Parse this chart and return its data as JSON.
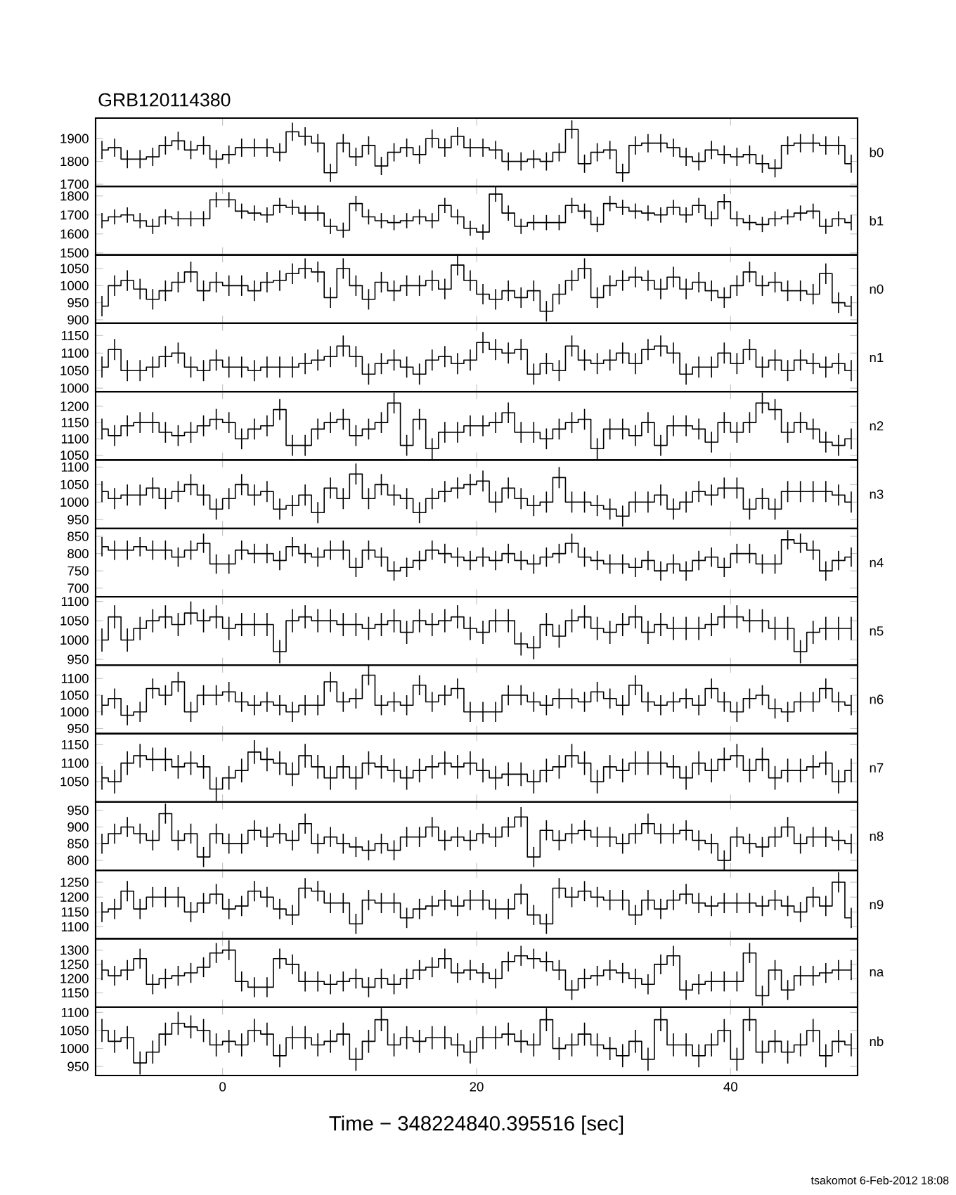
{
  "chart_data": [
    {
      "type": "step",
      "title": "GRB120114380",
      "annotations": [
        "b0"
      ],
      "color": "#000000",
      "xlim": [
        -10,
        50
      ],
      "xticks": [
        0,
        20,
        40
      ],
      "tick_labels": "y",
      "ylim": [
        1690,
        1990
      ],
      "yticks": [
        1700,
        1800,
        1900
      ],
      "x": [
        -9.5,
        -8.5,
        -7.5,
        -6.5,
        -5.5,
        -4.5,
        -3.5,
        -2.5,
        -1.5,
        -0.5,
        0.5,
        1.5,
        2.5,
        3.5,
        4.5,
        5.5,
        6.5,
        7.5,
        8.5,
        9.5,
        10.5,
        11.5,
        12.5,
        13.5,
        14.5,
        15.5,
        16.5,
        17.5,
        18.5,
        19.5,
        20.5,
        21.5,
        22.5,
        23.5,
        24.5,
        25.5,
        26.5,
        27.5,
        28.5,
        29.5,
        30.5,
        31.5,
        32.5,
        33.5,
        34.5,
        35.5,
        36.5,
        37.5,
        38.5,
        39.5,
        40.5,
        41.5,
        42.5,
        43.5,
        44.5,
        45.5,
        46.5,
        47.5,
        48.5,
        49.5
      ],
      "values": [
        1850,
        1860,
        1810,
        1810,
        1820,
        1870,
        1890,
        1850,
        1870,
        1810,
        1830,
        1860,
        1860,
        1860,
        1840,
        1930,
        1910,
        1880,
        1750,
        1880,
        1820,
        1870,
        1780,
        1840,
        1860,
        1830,
        1900,
        1860,
        1910,
        1860,
        1860,
        1850,
        1800,
        1800,
        1810,
        1800,
        1840,
        1940,
        1790,
        1840,
        1850,
        1750,
        1870,
        1880,
        1880,
        1860,
        1820,
        1800,
        1850,
        1830,
        1820,
        1830,
        1790,
        1770,
        1870,
        1880,
        1880,
        1870,
        1870,
        1790
      ],
      "errors": [
        40,
        40,
        40,
        40,
        40,
        40,
        40,
        40,
        40,
        40,
        40,
        40,
        40,
        40,
        40,
        40,
        40,
        40,
        40,
        40,
        40,
        40,
        40,
        40,
        40,
        40,
        40,
        40,
        40,
        40,
        40,
        40,
        40,
        40,
        40,
        40,
        40,
        40,
        40,
        40,
        40,
        40,
        40,
        40,
        40,
        40,
        40,
        40,
        40,
        40,
        40,
        40,
        40,
        40,
        40,
        40,
        40,
        40,
        40,
        40
      ]
    },
    {
      "type": "step",
      "annotations": [
        "b1"
      ],
      "color": "#000000",
      "xlim": [
        -10,
        50
      ],
      "xticks": [
        0,
        20,
        40
      ],
      "tick_labels": "y",
      "ylim": [
        1490,
        1850
      ],
      "yticks": [
        1500,
        1600,
        1700,
        1800
      ],
      "x": [
        -9.5,
        -8.5,
        -7.5,
        -6.5,
        -5.5,
        -4.5,
        -3.5,
        -2.5,
        -1.5,
        -0.5,
        0.5,
        1.5,
        2.5,
        3.5,
        4.5,
        5.5,
        6.5,
        7.5,
        8.5,
        9.5,
        10.5,
        11.5,
        12.5,
        13.5,
        14.5,
        15.5,
        16.5,
        17.5,
        18.5,
        19.5,
        20.5,
        21.5,
        22.5,
        23.5,
        24.5,
        25.5,
        26.5,
        27.5,
        28.5,
        29.5,
        30.5,
        31.5,
        32.5,
        33.5,
        34.5,
        35.5,
        36.5,
        37.5,
        38.5,
        39.5,
        40.5,
        41.5,
        42.5,
        43.5,
        44.5,
        45.5,
        46.5,
        47.5,
        48.5,
        49.5
      ],
      "values": [
        1670,
        1690,
        1700,
        1670,
        1640,
        1690,
        1680,
        1680,
        1680,
        1780,
        1780,
        1720,
        1710,
        1700,
        1750,
        1740,
        1710,
        1710,
        1640,
        1620,
        1760,
        1690,
        1670,
        1660,
        1670,
        1690,
        1670,
        1750,
        1690,
        1630,
        1610,
        1810,
        1710,
        1640,
        1660,
        1660,
        1660,
        1750,
        1720,
        1650,
        1760,
        1740,
        1720,
        1710,
        1700,
        1740,
        1700,
        1750,
        1680,
        1770,
        1680,
        1660,
        1650,
        1680,
        1690,
        1710,
        1720,
        1640,
        1680,
        1660
      ],
      "errors": [
        40,
        40,
        40,
        40,
        40,
        40,
        40,
        40,
        40,
        40,
        40,
        40,
        40,
        40,
        40,
        40,
        40,
        40,
        40,
        40,
        40,
        40,
        40,
        40,
        40,
        40,
        40,
        40,
        40,
        40,
        40,
        40,
        40,
        40,
        40,
        40,
        40,
        40,
        40,
        40,
        40,
        40,
        40,
        40,
        40,
        40,
        40,
        40,
        40,
        40,
        40,
        40,
        40,
        40,
        40,
        40,
        40,
        40,
        40,
        40
      ]
    },
    {
      "type": "step",
      "annotations": [
        "n0"
      ],
      "color": "#000000",
      "xlim": [
        -10,
        50
      ],
      "xticks": [
        0,
        20,
        40
      ],
      "tick_labels": "y",
      "ylim": [
        890,
        1090
      ],
      "yticks": [
        900,
        950,
        1000,
        1050
      ],
      "x": [
        -9.5,
        -8.5,
        -7.5,
        -6.5,
        -5.5,
        -4.5,
        -3.5,
        -2.5,
        -1.5,
        -0.5,
        0.5,
        1.5,
        2.5,
        3.5,
        4.5,
        5.5,
        6.5,
        7.5,
        8.5,
        9.5,
        10.5,
        11.5,
        12.5,
        13.5,
        14.5,
        15.5,
        16.5,
        17.5,
        18.5,
        19.5,
        20.5,
        21.5,
        22.5,
        23.5,
        24.5,
        25.5,
        26.5,
        27.5,
        28.5,
        29.5,
        30.5,
        31.5,
        32.5,
        33.5,
        34.5,
        35.5,
        36.5,
        37.5,
        38.5,
        39.5,
        40.5,
        41.5,
        42.5,
        43.5,
        44.5,
        45.5,
        46.5,
        47.5,
        48.5,
        49.5
      ],
      "values": [
        940,
        1000,
        1015,
        990,
        960,
        985,
        1010,
        1040,
        985,
        1010,
        1000,
        1000,
        985,
        1010,
        1015,
        1035,
        1050,
        1040,
        965,
        1050,
        1000,
        960,
        1010,
        985,
        1000,
        1000,
        1015,
        990,
        1060,
        1015,
        975,
        960,
        985,
        965,
        985,
        925,
        975,
        1015,
        1050,
        965,
        1000,
        1015,
        1025,
        1015,
        990,
        1025,
        990,
        1010,
        985,
        965,
        1000,
        1040,
        1000,
        1010,
        985,
        985,
        975,
        1035,
        950,
        940
      ],
      "errors": [
        30,
        30,
        30,
        30,
        30,
        30,
        30,
        30,
        30,
        30,
        30,
        30,
        30,
        30,
        30,
        30,
        30,
        30,
        30,
        30,
        30,
        30,
        30,
        30,
        30,
        30,
        30,
        30,
        30,
        30,
        30,
        30,
        30,
        30,
        30,
        30,
        30,
        30,
        30,
        30,
        30,
        30,
        30,
        30,
        30,
        30,
        30,
        30,
        30,
        30,
        30,
        30,
        30,
        30,
        30,
        30,
        30,
        30,
        30,
        30
      ]
    },
    {
      "type": "step",
      "annotations": [
        "n1"
      ],
      "color": "#000000",
      "xlim": [
        -10,
        50
      ],
      "xticks": [
        0,
        20,
        40
      ],
      "tick_labels": "y",
      "ylim": [
        990,
        1185
      ],
      "yticks": [
        1000,
        1050,
        1100,
        1150
      ],
      "x": [
        -9.5,
        -8.5,
        -7.5,
        -6.5,
        -5.5,
        -4.5,
        -3.5,
        -2.5,
        -1.5,
        -0.5,
        0.5,
        1.5,
        2.5,
        3.5,
        4.5,
        5.5,
        6.5,
        7.5,
        8.5,
        9.5,
        10.5,
        11.5,
        12.5,
        13.5,
        14.5,
        15.5,
        16.5,
        17.5,
        18.5,
        19.5,
        20.5,
        21.5,
        22.5,
        23.5,
        24.5,
        25.5,
        26.5,
        27.5,
        28.5,
        29.5,
        30.5,
        31.5,
        32.5,
        33.5,
        34.5,
        35.5,
        36.5,
        37.5,
        38.5,
        39.5,
        40.5,
        41.5,
        42.5,
        43.5,
        44.5,
        45.5,
        46.5,
        47.5,
        48.5,
        49.5
      ],
      "values": [
        1060,
        1110,
        1050,
        1050,
        1060,
        1090,
        1100,
        1060,
        1050,
        1080,
        1060,
        1060,
        1050,
        1060,
        1060,
        1060,
        1070,
        1080,
        1090,
        1120,
        1090,
        1040,
        1070,
        1080,
        1060,
        1040,
        1080,
        1090,
        1070,
        1080,
        1130,
        1110,
        1100,
        1110,
        1040,
        1070,
        1050,
        1120,
        1080,
        1070,
        1080,
        1100,
        1070,
        1110,
        1120,
        1100,
        1040,
        1060,
        1060,
        1100,
        1070,
        1110,
        1060,
        1080,
        1050,
        1080,
        1070,
        1060,
        1070,
        1050
      ],
      "errors": [
        30,
        30,
        30,
        30,
        30,
        30,
        30,
        30,
        30,
        30,
        30,
        30,
        30,
        30,
        30,
        30,
        30,
        30,
        30,
        30,
        30,
        30,
        30,
        30,
        30,
        30,
        30,
        30,
        30,
        30,
        30,
        30,
        30,
        30,
        30,
        30,
        30,
        30,
        30,
        30,
        30,
        30,
        30,
        30,
        30,
        30,
        30,
        30,
        30,
        30,
        30,
        30,
        30,
        30,
        30,
        30,
        30,
        30,
        30,
        30
      ]
    },
    {
      "type": "step",
      "annotations": [
        "n2"
      ],
      "color": "#000000",
      "xlim": [
        -10,
        50
      ],
      "xticks": [
        0,
        20,
        40
      ],
      "tick_labels": "y",
      "ylim": [
        1035,
        1245
      ],
      "yticks": [
        1050,
        1100,
        1150,
        1200
      ],
      "x": [
        -9.5,
        -8.5,
        -7.5,
        -6.5,
        -5.5,
        -4.5,
        -3.5,
        -2.5,
        -1.5,
        -0.5,
        0.5,
        1.5,
        2.5,
        3.5,
        4.5,
        5.5,
        6.5,
        7.5,
        8.5,
        9.5,
        10.5,
        11.5,
        12.5,
        13.5,
        14.5,
        15.5,
        16.5,
        17.5,
        18.5,
        19.5,
        20.5,
        21.5,
        22.5,
        23.5,
        24.5,
        25.5,
        26.5,
        27.5,
        28.5,
        29.5,
        30.5,
        31.5,
        32.5,
        33.5,
        34.5,
        35.5,
        36.5,
        37.5,
        38.5,
        39.5,
        40.5,
        41.5,
        42.5,
        43.5,
        44.5,
        45.5,
        46.5,
        47.5,
        48.5,
        49.5
      ],
      "values": [
        1130,
        1110,
        1140,
        1150,
        1150,
        1120,
        1110,
        1120,
        1140,
        1160,
        1150,
        1100,
        1130,
        1140,
        1190,
        1080,
        1080,
        1130,
        1150,
        1160,
        1110,
        1130,
        1150,
        1210,
        1080,
        1160,
        1070,
        1120,
        1120,
        1140,
        1140,
        1150,
        1180,
        1120,
        1120,
        1100,
        1130,
        1150,
        1160,
        1070,
        1130,
        1130,
        1110,
        1150,
        1080,
        1140,
        1140,
        1130,
        1090,
        1150,
        1120,
        1150,
        1210,
        1190,
        1120,
        1150,
        1130,
        1090,
        1080,
        1100
      ],
      "errors": [
        32,
        32,
        32,
        32,
        32,
        32,
        32,
        32,
        32,
        32,
        32,
        32,
        32,
        32,
        32,
        32,
        32,
        32,
        32,
        32,
        32,
        32,
        32,
        32,
        32,
        32,
        32,
        32,
        32,
        32,
        32,
        32,
        32,
        32,
        32,
        32,
        32,
        32,
        32,
        32,
        32,
        32,
        32,
        32,
        32,
        32,
        32,
        32,
        32,
        32,
        32,
        32,
        32,
        32,
        32,
        32,
        32,
        32,
        32,
        32
      ]
    },
    {
      "type": "step",
      "annotations": [
        "n3"
      ],
      "color": "#000000",
      "xlim": [
        -10,
        50
      ],
      "xticks": [
        0,
        20,
        40
      ],
      "tick_labels": "y",
      "ylim": [
        925,
        1120
      ],
      "yticks": [
        950,
        1000,
        1050,
        1100
      ],
      "x": [
        -9.5,
        -8.5,
        -7.5,
        -6.5,
        -5.5,
        -4.5,
        -3.5,
        -2.5,
        -1.5,
        -0.5,
        0.5,
        1.5,
        2.5,
        3.5,
        4.5,
        5.5,
        6.5,
        7.5,
        8.5,
        9.5,
        10.5,
        11.5,
        12.5,
        13.5,
        14.5,
        15.5,
        16.5,
        17.5,
        18.5,
        19.5,
        20.5,
        21.5,
        22.5,
        23.5,
        24.5,
        25.5,
        26.5,
        27.5,
        28.5,
        29.5,
        30.5,
        31.5,
        32.5,
        33.5,
        34.5,
        35.5,
        36.5,
        37.5,
        38.5,
        39.5,
        40.5,
        41.5,
        42.5,
        43.5,
        44.5,
        45.5,
        46.5,
        47.5,
        48.5,
        49.5
      ],
      "values": [
        1030,
        1010,
        1020,
        1020,
        1040,
        1010,
        1030,
        1050,
        1020,
        980,
        1010,
        1050,
        1020,
        1030,
        980,
        990,
        1020,
        970,
        1040,
        1010,
        1080,
        1010,
        1050,
        1020,
        1010,
        970,
        1010,
        1030,
        1040,
        1050,
        1060,
        1000,
        1040,
        1010,
        990,
        1000,
        1070,
        1000,
        1000,
        990,
        980,
        960,
        1000,
        1000,
        1020,
        980,
        1000,
        1030,
        1020,
        1040,
        1040,
        980,
        1010,
        980,
        1030,
        1030,
        1030,
        1030,
        1020,
        1000
      ],
      "errors": [
        30,
        30,
        30,
        30,
        30,
        30,
        30,
        30,
        30,
        30,
        30,
        30,
        30,
        30,
        30,
        30,
        30,
        30,
        30,
        30,
        30,
        30,
        30,
        30,
        30,
        30,
        30,
        30,
        30,
        30,
        30,
        30,
        30,
        30,
        30,
        30,
        30,
        30,
        30,
        30,
        30,
        30,
        30,
        30,
        30,
        30,
        30,
        30,
        30,
        30,
        30,
        30,
        30,
        30,
        30,
        30,
        30,
        30,
        30,
        30
      ]
    },
    {
      "type": "step",
      "annotations": [
        "n4"
      ],
      "color": "#000000",
      "xlim": [
        -10,
        50
      ],
      "xticks": [
        0,
        20,
        40
      ],
      "tick_labels": "y",
      "ylim": [
        675,
        873
      ],
      "yticks": [
        700,
        750,
        800,
        850
      ],
      "x": [
        -9.5,
        -8.5,
        -7.5,
        -6.5,
        -5.5,
        -4.5,
        -3.5,
        -2.5,
        -1.5,
        -0.5,
        0.5,
        1.5,
        2.5,
        3.5,
        4.5,
        5.5,
        6.5,
        7.5,
        8.5,
        9.5,
        10.5,
        11.5,
        12.5,
        13.5,
        14.5,
        15.5,
        16.5,
        17.5,
        18.5,
        19.5,
        20.5,
        21.5,
        22.5,
        23.5,
        24.5,
        25.5,
        26.5,
        27.5,
        28.5,
        29.5,
        30.5,
        31.5,
        32.5,
        33.5,
        34.5,
        35.5,
        36.5,
        37.5,
        38.5,
        39.5,
        40.5,
        41.5,
        42.5,
        43.5,
        44.5,
        45.5,
        46.5,
        47.5,
        48.5,
        49.5
      ],
      "values": [
        820,
        810,
        810,
        820,
        810,
        810,
        790,
        810,
        830,
        770,
        770,
        810,
        800,
        800,
        780,
        820,
        800,
        790,
        810,
        810,
        760,
        810,
        790,
        750,
        760,
        780,
        810,
        800,
        790,
        780,
        790,
        780,
        800,
        780,
        770,
        790,
        800,
        830,
        790,
        780,
        770,
        770,
        760,
        780,
        750,
        770,
        750,
        780,
        790,
        760,
        800,
        800,
        770,
        770,
        840,
        830,
        810,
        750,
        780,
        790
      ],
      "errors": [
        28,
        28,
        28,
        28,
        28,
        28,
        28,
        28,
        28,
        28,
        28,
        28,
        28,
        28,
        28,
        28,
        28,
        28,
        28,
        28,
        28,
        28,
        28,
        28,
        28,
        28,
        28,
        28,
        28,
        28,
        28,
        28,
        28,
        28,
        28,
        28,
        28,
        28,
        28,
        28,
        28,
        28,
        28,
        28,
        28,
        28,
        28,
        28,
        28,
        28,
        28,
        28,
        28,
        28,
        28,
        28,
        28,
        28,
        28,
        28
      ]
    },
    {
      "type": "step",
      "annotations": [
        "n5"
      ],
      "color": "#000000",
      "xlim": [
        -10,
        50
      ],
      "xticks": [
        0,
        20,
        40
      ],
      "tick_labels": "y",
      "ylim": [
        935,
        1112
      ],
      "yticks": [
        950,
        1000,
        1050,
        1100
      ],
      "x": [
        -9.5,
        -8.5,
        -7.5,
        -6.5,
        -5.5,
        -4.5,
        -3.5,
        -2.5,
        -1.5,
        -0.5,
        0.5,
        1.5,
        2.5,
        3.5,
        4.5,
        5.5,
        6.5,
        7.5,
        8.5,
        9.5,
        10.5,
        11.5,
        12.5,
        13.5,
        14.5,
        15.5,
        16.5,
        17.5,
        18.5,
        19.5,
        20.5,
        21.5,
        22.5,
        23.5,
        24.5,
        25.5,
        26.5,
        27.5,
        28.5,
        29.5,
        30.5,
        31.5,
        32.5,
        33.5,
        34.5,
        35.5,
        36.5,
        37.5,
        38.5,
        39.5,
        40.5,
        41.5,
        42.5,
        43.5,
        44.5,
        45.5,
        46.5,
        47.5,
        48.5,
        49.5
      ],
      "values": [
        1000,
        1060,
        1000,
        1030,
        1050,
        1060,
        1040,
        1070,
        1050,
        1060,
        1030,
        1040,
        1040,
        1040,
        970,
        1050,
        1060,
        1050,
        1050,
        1040,
        1040,
        1030,
        1040,
        1050,
        1020,
        1050,
        1040,
        1050,
        1060,
        1030,
        1020,
        1050,
        1050,
        990,
        980,
        1040,
        1010,
        1050,
        1060,
        1030,
        1020,
        1040,
        1060,
        1020,
        1040,
        1030,
        1030,
        1030,
        1040,
        1060,
        1060,
        1050,
        1050,
        1030,
        1030,
        970,
        1020,
        1030,
        1030,
        1030
      ],
      "errors": [
        30,
        30,
        30,
        30,
        30,
        30,
        30,
        30,
        30,
        30,
        30,
        30,
        30,
        30,
        30,
        30,
        30,
        30,
        30,
        30,
        30,
        30,
        30,
        30,
        30,
        30,
        30,
        30,
        30,
        30,
        30,
        30,
        30,
        30,
        30,
        30,
        30,
        30,
        30,
        30,
        30,
        30,
        30,
        30,
        30,
        30,
        30,
        30,
        30,
        30,
        30,
        30,
        30,
        30,
        30,
        30,
        30,
        30,
        30,
        30
      ]
    },
    {
      "type": "step",
      "annotations": [
        "n6"
      ],
      "color": "#000000",
      "xlim": [
        -10,
        50
      ],
      "xticks": [
        0,
        20,
        40
      ],
      "tick_labels": "y",
      "ylim": [
        935,
        1140
      ],
      "yticks": [
        950,
        1000,
        1050,
        1100
      ],
      "x": [
        -9.5,
        -8.5,
        -7.5,
        -6.5,
        -5.5,
        -4.5,
        -3.5,
        -2.5,
        -1.5,
        -0.5,
        0.5,
        1.5,
        2.5,
        3.5,
        4.5,
        5.5,
        6.5,
        7.5,
        8.5,
        9.5,
        10.5,
        11.5,
        12.5,
        13.5,
        14.5,
        15.5,
        16.5,
        17.5,
        18.5,
        19.5,
        20.5,
        21.5,
        22.5,
        23.5,
        24.5,
        25.5,
        26.5,
        27.5,
        28.5,
        29.5,
        30.5,
        31.5,
        32.5,
        33.5,
        34.5,
        35.5,
        36.5,
        37.5,
        38.5,
        39.5,
        40.5,
        41.5,
        42.5,
        43.5,
        44.5,
        45.5,
        46.5,
        47.5,
        48.5,
        49.5
      ],
      "values": [
        1020,
        1040,
        990,
        1000,
        1070,
        1050,
        1090,
        1000,
        1050,
        1050,
        1060,
        1030,
        1020,
        1030,
        1020,
        1000,
        1020,
        1020,
        1090,
        1030,
        1040,
        1110,
        1020,
        1030,
        1020,
        1080,
        1030,
        1050,
        1070,
        1000,
        1000,
        1000,
        1050,
        1050,
        1030,
        1020,
        1040,
        1040,
        1030,
        1060,
        1040,
        1020,
        1080,
        1030,
        1020,
        1030,
        1040,
        1020,
        1070,
        1030,
        1000,
        1040,
        1050,
        1010,
        1000,
        1030,
        1030,
        1070,
        1030,
        1020
      ],
      "errors": [
        30,
        30,
        30,
        30,
        30,
        30,
        30,
        30,
        30,
        30,
        30,
        30,
        30,
        30,
        30,
        30,
        30,
        30,
        30,
        30,
        30,
        30,
        30,
        30,
        30,
        30,
        30,
        30,
        30,
        30,
        30,
        30,
        30,
        30,
        30,
        30,
        30,
        30,
        30,
        30,
        30,
        30,
        30,
        30,
        30,
        30,
        30,
        30,
        30,
        30,
        30,
        30,
        30,
        30,
        30,
        30,
        30,
        30,
        30,
        30
      ]
    },
    {
      "type": "step",
      "annotations": [
        "n7"
      ],
      "color": "#000000",
      "xlim": [
        -10,
        50
      ],
      "xticks": [
        0,
        20,
        40
      ],
      "tick_labels": "y",
      "ylim": [
        995,
        1180
      ],
      "yticks": [
        1050,
        1100,
        1150
      ],
      "x": [
        -9.5,
        -8.5,
        -7.5,
        -6.5,
        -5.5,
        -4.5,
        -3.5,
        -2.5,
        -1.5,
        -0.5,
        0.5,
        1.5,
        2.5,
        3.5,
        4.5,
        5.5,
        6.5,
        7.5,
        8.5,
        9.5,
        10.5,
        11.5,
        12.5,
        13.5,
        14.5,
        15.5,
        16.5,
        17.5,
        18.5,
        19.5,
        20.5,
        21.5,
        22.5,
        23.5,
        24.5,
        25.5,
        26.5,
        27.5,
        28.5,
        29.5,
        30.5,
        31.5,
        32.5,
        33.5,
        34.5,
        35.5,
        36.5,
        37.5,
        38.5,
        39.5,
        40.5,
        41.5,
        42.5,
        43.5,
        44.5,
        45.5,
        46.5,
        47.5,
        48.5,
        49.5
      ],
      "values": [
        1060,
        1050,
        1100,
        1120,
        1110,
        1110,
        1090,
        1100,
        1090,
        1030,
        1060,
        1080,
        1130,
        1110,
        1100,
        1070,
        1120,
        1090,
        1060,
        1090,
        1060,
        1100,
        1090,
        1080,
        1060,
        1080,
        1090,
        1100,
        1090,
        1100,
        1080,
        1060,
        1070,
        1070,
        1050,
        1080,
        1090,
        1120,
        1100,
        1050,
        1090,
        1080,
        1100,
        1100,
        1100,
        1090,
        1060,
        1100,
        1080,
        1110,
        1120,
        1080,
        1110,
        1060,
        1080,
        1080,
        1090,
        1100,
        1050,
        1080
      ],
      "errors": [
        32,
        32,
        32,
        32,
        32,
        32,
        32,
        32,
        32,
        32,
        32,
        32,
        32,
        32,
        32,
        32,
        32,
        32,
        32,
        32,
        32,
        32,
        32,
        32,
        32,
        32,
        32,
        32,
        32,
        32,
        32,
        32,
        32,
        32,
        32,
        32,
        32,
        32,
        32,
        32,
        32,
        32,
        32,
        32,
        32,
        32,
        32,
        32,
        32,
        32,
        32,
        32,
        32,
        32,
        32,
        32,
        32,
        32,
        32,
        32
      ]
    },
    {
      "type": "step",
      "annotations": [
        "n8"
      ],
      "color": "#000000",
      "xlim": [
        -10,
        50
      ],
      "xticks": [
        0,
        20,
        40
      ],
      "tick_labels": "y",
      "ylim": [
        770,
        975
      ],
      "yticks": [
        800,
        850,
        900,
        950
      ],
      "x": [
        -9.5,
        -8.5,
        -7.5,
        -6.5,
        -5.5,
        -4.5,
        -3.5,
        -2.5,
        -1.5,
        -0.5,
        0.5,
        1.5,
        2.5,
        3.5,
        4.5,
        5.5,
        6.5,
        7.5,
        8.5,
        9.5,
        10.5,
        11.5,
        12.5,
        13.5,
        14.5,
        15.5,
        16.5,
        17.5,
        18.5,
        19.5,
        20.5,
        21.5,
        22.5,
        23.5,
        24.5,
        25.5,
        26.5,
        27.5,
        28.5,
        29.5,
        30.5,
        31.5,
        32.5,
        33.5,
        34.5,
        35.5,
        36.5,
        37.5,
        38.5,
        39.5,
        40.5,
        41.5,
        42.5,
        43.5,
        44.5,
        45.5,
        46.5,
        47.5,
        48.5,
        49.5
      ],
      "values": [
        850,
        880,
        900,
        880,
        860,
        940,
        860,
        880,
        810,
        880,
        850,
        850,
        890,
        870,
        880,
        860,
        910,
        850,
        870,
        850,
        840,
        830,
        850,
        830,
        870,
        870,
        900,
        860,
        870,
        860,
        880,
        870,
        900,
        930,
        810,
        890,
        860,
        880,
        890,
        870,
        870,
        850,
        880,
        910,
        880,
        880,
        890,
        860,
        850,
        800,
        870,
        850,
        840,
        870,
        900,
        850,
        870,
        870,
        860,
        850
      ],
      "errors": [
        30,
        30,
        30,
        30,
        30,
        30,
        30,
        30,
        30,
        30,
        30,
        30,
        30,
        30,
        30,
        30,
        30,
        30,
        30,
        30,
        30,
        30,
        30,
        30,
        30,
        30,
        30,
        30,
        30,
        30,
        30,
        30,
        30,
        30,
        30,
        30,
        30,
        30,
        30,
        30,
        30,
        30,
        30,
        30,
        30,
        30,
        30,
        30,
        30,
        30,
        30,
        30,
        30,
        30,
        30,
        30,
        30,
        30,
        30,
        30
      ]
    },
    {
      "type": "step",
      "annotations": [
        "n9"
      ],
      "color": "#000000",
      "xlim": [
        -10,
        50
      ],
      "xticks": [
        0,
        20,
        40
      ],
      "tick_labels": "y",
      "ylim": [
        1060,
        1290
      ],
      "yticks": [
        1100,
        1150,
        1200,
        1250
      ],
      "x": [
        -9.5,
        -8.5,
        -7.5,
        -6.5,
        -5.5,
        -4.5,
        -3.5,
        -2.5,
        -1.5,
        -0.5,
        0.5,
        1.5,
        2.5,
        3.5,
        4.5,
        5.5,
        6.5,
        7.5,
        8.5,
        9.5,
        10.5,
        11.5,
        12.5,
        13.5,
        14.5,
        15.5,
        16.5,
        17.5,
        18.5,
        19.5,
        20.5,
        21.5,
        22.5,
        23.5,
        24.5,
        25.5,
        26.5,
        27.5,
        28.5,
        29.5,
        30.5,
        31.5,
        32.5,
        33.5,
        34.5,
        35.5,
        36.5,
        37.5,
        38.5,
        39.5,
        40.5,
        41.5,
        42.5,
        43.5,
        44.5,
        45.5,
        46.5,
        47.5,
        48.5,
        49.5
      ],
      "values": [
        1150,
        1160,
        1220,
        1160,
        1200,
        1200,
        1200,
        1150,
        1180,
        1210,
        1160,
        1170,
        1220,
        1200,
        1160,
        1140,
        1230,
        1220,
        1180,
        1180,
        1110,
        1190,
        1180,
        1180,
        1130,
        1160,
        1170,
        1190,
        1170,
        1190,
        1190,
        1160,
        1160,
        1210,
        1140,
        1110,
        1230,
        1200,
        1220,
        1200,
        1190,
        1190,
        1140,
        1190,
        1160,
        1190,
        1210,
        1180,
        1170,
        1180,
        1180,
        1180,
        1170,
        1190,
        1170,
        1150,
        1200,
        1170,
        1250,
        1130
      ],
      "errors": [
        34,
        34,
        34,
        34,
        34,
        34,
        34,
        34,
        34,
        34,
        34,
        34,
        34,
        34,
        34,
        34,
        34,
        34,
        34,
        34,
        34,
        34,
        34,
        34,
        34,
        34,
        34,
        34,
        34,
        34,
        34,
        34,
        34,
        34,
        34,
        34,
        34,
        34,
        34,
        34,
        34,
        34,
        34,
        34,
        34,
        34,
        34,
        34,
        34,
        34,
        34,
        34,
        34,
        34,
        34,
        34,
        34,
        34,
        34,
        34
      ]
    },
    {
      "type": "step",
      "annotations": [
        "na"
      ],
      "color": "#000000",
      "xlim": [
        -10,
        50
      ],
      "xticks": [
        0,
        20,
        40
      ],
      "tick_labels": "y",
      "ylim": [
        1100,
        1340
      ],
      "yticks": [
        1150,
        1200,
        1250,
        1300
      ],
      "x": [
        -9.5,
        -8.5,
        -7.5,
        -6.5,
        -5.5,
        -4.5,
        -3.5,
        -2.5,
        -1.5,
        -0.5,
        0.5,
        1.5,
        2.5,
        3.5,
        4.5,
        5.5,
        6.5,
        7.5,
        8.5,
        9.5,
        10.5,
        11.5,
        12.5,
        13.5,
        14.5,
        15.5,
        16.5,
        17.5,
        18.5,
        19.5,
        20.5,
        21.5,
        22.5,
        23.5,
        24.5,
        25.5,
        26.5,
        27.5,
        28.5,
        29.5,
        30.5,
        31.5,
        32.5,
        33.5,
        34.5,
        35.5,
        36.5,
        37.5,
        38.5,
        39.5,
        40.5,
        41.5,
        42.5,
        43.5,
        44.5,
        45.5,
        46.5,
        47.5,
        48.5,
        49.5
      ],
      "values": [
        1230,
        1210,
        1230,
        1270,
        1180,
        1200,
        1210,
        1220,
        1240,
        1290,
        1300,
        1190,
        1170,
        1170,
        1270,
        1250,
        1190,
        1190,
        1180,
        1190,
        1200,
        1170,
        1200,
        1180,
        1200,
        1230,
        1240,
        1270,
        1220,
        1230,
        1220,
        1200,
        1260,
        1280,
        1270,
        1260,
        1230,
        1160,
        1200,
        1210,
        1230,
        1220,
        1200,
        1180,
        1250,
        1280,
        1160,
        1180,
        1190,
        1190,
        1190,
        1290,
        1140,
        1230,
        1160,
        1210,
        1210,
        1220,
        1230,
        1230
      ],
      "errors": [
        35,
        35,
        35,
        35,
        35,
        35,
        35,
        35,
        35,
        35,
        35,
        35,
        35,
        35,
        35,
        35,
        35,
        35,
        35,
        35,
        35,
        35,
        35,
        35,
        35,
        35,
        35,
        35,
        35,
        35,
        35,
        35,
        35,
        35,
        35,
        35,
        35,
        35,
        35,
        35,
        35,
        35,
        35,
        35,
        35,
        35,
        35,
        35,
        35,
        35,
        35,
        35,
        35,
        35,
        35,
        35,
        35,
        35,
        35,
        35
      ]
    },
    {
      "type": "step",
      "annotations": [
        "nb",
        "tsakomot  6-Feb-2012 18:08"
      ],
      "xlabel": "Time − 348224840.395516 [sec]",
      "color": "#000000",
      "xlim": [
        -10,
        50
      ],
      "xticks": [
        0,
        20,
        40
      ],
      "ylim": [
        925,
        1115
      ],
      "yticks": [
        950,
        1000,
        1050,
        1100
      ],
      "x": [
        -9.5,
        -8.5,
        -7.5,
        -6.5,
        -5.5,
        -4.5,
        -3.5,
        -2.5,
        -1.5,
        -0.5,
        0.5,
        1.5,
        2.5,
        3.5,
        4.5,
        5.5,
        6.5,
        7.5,
        8.5,
        9.5,
        10.5,
        11.5,
        12.5,
        13.5,
        14.5,
        15.5,
        16.5,
        17.5,
        18.5,
        19.5,
        20.5,
        21.5,
        22.5,
        23.5,
        24.5,
        25.5,
        26.5,
        27.5,
        28.5,
        29.5,
        30.5,
        31.5,
        32.5,
        33.5,
        34.5,
        35.5,
        36.5,
        37.5,
        38.5,
        39.5,
        40.5,
        41.5,
        42.5,
        43.5,
        44.5,
        45.5,
        46.5,
        47.5,
        48.5,
        49.5
      ],
      "values": [
        1050,
        1020,
        1030,
        960,
        990,
        1040,
        1070,
        1060,
        1050,
        1010,
        1020,
        1010,
        1050,
        1040,
        980,
        1030,
        1030,
        1010,
        1020,
        1040,
        970,
        1020,
        1080,
        1010,
        1030,
        1020,
        1030,
        1030,
        1010,
        990,
        1030,
        1030,
        1040,
        1020,
        1010,
        1080,
        1000,
        1010,
        1040,
        1010,
        1000,
        980,
        1020,
        970,
        1080,
        1010,
        1010,
        980,
        1010,
        1050,
        970,
        1080,
        990,
        1020,
        990,
        1010,
        1050,
        980,
        1020,
        1010
      ],
      "errors": [
        32,
        32,
        32,
        32,
        32,
        32,
        32,
        32,
        32,
        32,
        32,
        32,
        32,
        32,
        32,
        32,
        32,
        32,
        32,
        32,
        32,
        32,
        32,
        32,
        32,
        32,
        32,
        32,
        32,
        32,
        32,
        32,
        32,
        32,
        32,
        32,
        32,
        32,
        32,
        32,
        32,
        32,
        32,
        32,
        32,
        32,
        32,
        32,
        32,
        32,
        32,
        32,
        32,
        32,
        32,
        32,
        32,
        32,
        32,
        32
      ]
    }
  ]
}
